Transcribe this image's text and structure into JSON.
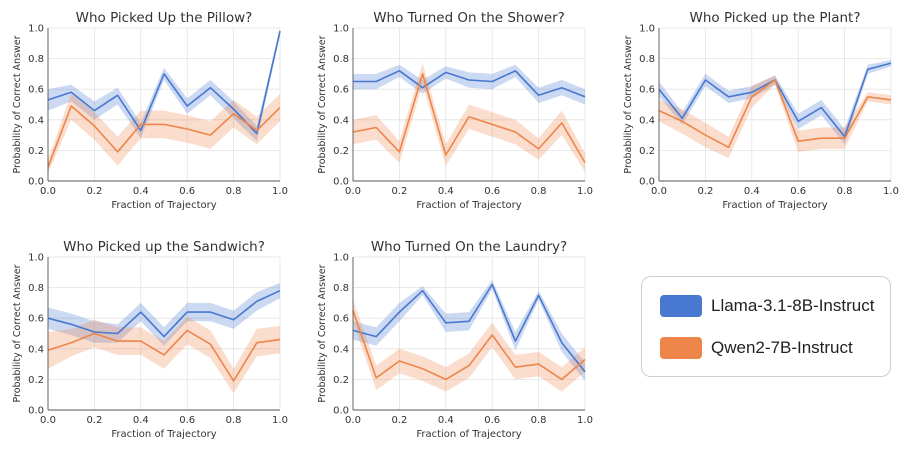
{
  "legend": {
    "items": [
      {
        "label": "Llama-3.1-8B-Instruct",
        "color": "#4878CF"
      },
      {
        "label": "Qwen2-7B-Instruct",
        "color": "#EE854A"
      }
    ]
  },
  "chart_data": [
    {
      "type": "line",
      "title": "Who Picked Up the Pillow?",
      "xlabel": "Fraction of Trajectory",
      "ylabel": "Probability of Correct Answer",
      "x": [
        0.0,
        0.1,
        0.2,
        0.3,
        0.4,
        0.5,
        0.6,
        0.7,
        0.8,
        0.9,
        1.0
      ],
      "xticks": [
        "0.0",
        "0.2",
        "0.4",
        "0.6",
        "0.8",
        "1.0"
      ],
      "yticks": [
        "0.0",
        "0.2",
        "0.4",
        "0.6",
        "0.8",
        "1.0"
      ],
      "xlim": [
        0,
        1
      ],
      "ylim": [
        0,
        1
      ],
      "grid": true,
      "series": [
        {
          "name": "Llama-3.1-8B-Instruct",
          "values": [
            0.53,
            0.58,
            0.46,
            0.56,
            0.33,
            0.7,
            0.49,
            0.61,
            0.47,
            0.31,
            0.98
          ],
          "lower": [
            0.46,
            0.52,
            0.4,
            0.5,
            0.28,
            0.66,
            0.44,
            0.56,
            0.41,
            0.26,
            0.95
          ],
          "upper": [
            0.6,
            0.63,
            0.52,
            0.61,
            0.38,
            0.74,
            0.54,
            0.66,
            0.52,
            0.36,
            1.0
          ]
        },
        {
          "name": "Qwen2-7B-Instruct",
          "values": [
            0.09,
            0.49,
            0.36,
            0.19,
            0.37,
            0.37,
            0.34,
            0.3,
            0.44,
            0.33,
            0.48
          ],
          "lower": [
            0.05,
            0.4,
            0.27,
            0.1,
            0.28,
            0.28,
            0.25,
            0.21,
            0.35,
            0.24,
            0.39
          ],
          "upper": [
            0.14,
            0.57,
            0.45,
            0.29,
            0.46,
            0.46,
            0.43,
            0.39,
            0.53,
            0.42,
            0.57
          ]
        }
      ]
    },
    {
      "type": "line",
      "title": "Who Turned On the Shower?",
      "xlabel": "Fraction of Trajectory",
      "ylabel": "Probability of Correct Answer",
      "x": [
        0.0,
        0.1,
        0.2,
        0.3,
        0.4,
        0.5,
        0.6,
        0.7,
        0.8,
        0.9,
        1.0
      ],
      "xticks": [
        "0.0",
        "0.2",
        "0.4",
        "0.6",
        "0.8",
        "1.0"
      ],
      "yticks": [
        "0.0",
        "0.2",
        "0.4",
        "0.6",
        "0.8",
        "1.0"
      ],
      "xlim": [
        0,
        1
      ],
      "ylim": [
        0,
        1
      ],
      "grid": true,
      "series": [
        {
          "name": "Llama-3.1-8B-Instruct",
          "values": [
            0.65,
            0.65,
            0.72,
            0.61,
            0.71,
            0.66,
            0.65,
            0.72,
            0.56,
            0.61,
            0.55
          ],
          "lower": [
            0.6,
            0.6,
            0.68,
            0.57,
            0.67,
            0.61,
            0.6,
            0.68,
            0.51,
            0.56,
            0.5
          ],
          "upper": [
            0.7,
            0.7,
            0.76,
            0.66,
            0.75,
            0.71,
            0.7,
            0.76,
            0.61,
            0.66,
            0.6
          ]
        },
        {
          "name": "Qwen2-7B-Instruct",
          "values": [
            0.32,
            0.35,
            0.19,
            0.7,
            0.17,
            0.42,
            0.37,
            0.32,
            0.21,
            0.38,
            0.12
          ],
          "lower": [
            0.24,
            0.27,
            0.12,
            0.63,
            0.1,
            0.34,
            0.29,
            0.24,
            0.14,
            0.3,
            0.06
          ],
          "upper": [
            0.4,
            0.43,
            0.26,
            0.77,
            0.24,
            0.5,
            0.45,
            0.4,
            0.28,
            0.46,
            0.18
          ]
        }
      ]
    },
    {
      "type": "line",
      "title": "Who Picked up the Plant?",
      "xlabel": "Fraction of Trajectory",
      "ylabel": "Probability of Correct Answer",
      "x": [
        0.0,
        0.1,
        0.2,
        0.3,
        0.4,
        0.5,
        0.6,
        0.7,
        0.8,
        0.9,
        1.0
      ],
      "xticks": [
        "0.0",
        "0.2",
        "0.4",
        "0.6",
        "0.8",
        "1.0"
      ],
      "yticks": [
        "0.0",
        "0.2",
        "0.4",
        "0.6",
        "0.8",
        "1.0"
      ],
      "xlim": [
        0,
        1
      ],
      "ylim": [
        0,
        1
      ],
      "grid": true,
      "series": [
        {
          "name": "Llama-3.1-8B-Instruct",
          "values": [
            0.6,
            0.41,
            0.66,
            0.55,
            0.58,
            0.66,
            0.39,
            0.48,
            0.29,
            0.73,
            0.77
          ],
          "lower": [
            0.55,
            0.37,
            0.62,
            0.51,
            0.54,
            0.63,
            0.34,
            0.43,
            0.24,
            0.7,
            0.75
          ],
          "upper": [
            0.65,
            0.45,
            0.7,
            0.59,
            0.62,
            0.69,
            0.44,
            0.53,
            0.34,
            0.76,
            0.79
          ]
        },
        {
          "name": "Qwen2-7B-Instruct",
          "values": [
            0.46,
            0.39,
            0.3,
            0.22,
            0.55,
            0.66,
            0.26,
            0.28,
            0.28,
            0.55,
            0.53
          ],
          "lower": [
            0.39,
            0.31,
            0.22,
            0.15,
            0.48,
            0.63,
            0.19,
            0.21,
            0.21,
            0.52,
            0.5
          ],
          "upper": [
            0.53,
            0.47,
            0.38,
            0.29,
            0.62,
            0.69,
            0.33,
            0.35,
            0.35,
            0.58,
            0.56
          ]
        }
      ]
    },
    {
      "type": "line",
      "title": "Who Picked up the Sandwich?",
      "xlabel": "Fraction of Trajectory",
      "ylabel": "Probability of Correct Answer",
      "x": [
        0.0,
        0.1,
        0.2,
        0.3,
        0.4,
        0.5,
        0.6,
        0.7,
        0.8,
        0.9,
        1.0
      ],
      "xticks": [
        "0.0",
        "0.2",
        "0.4",
        "0.6",
        "0.8",
        "1.0"
      ],
      "yticks": [
        "0.0",
        "0.2",
        "0.4",
        "0.6",
        "0.8",
        "1.0"
      ],
      "xlim": [
        0,
        1
      ],
      "ylim": [
        0,
        1
      ],
      "grid": true,
      "series": [
        {
          "name": "Llama-3.1-8B-Instruct",
          "values": [
            0.6,
            0.56,
            0.51,
            0.5,
            0.64,
            0.48,
            0.64,
            0.64,
            0.59,
            0.71,
            0.78
          ],
          "lower": [
            0.53,
            0.49,
            0.44,
            0.44,
            0.58,
            0.42,
            0.58,
            0.58,
            0.53,
            0.65,
            0.73
          ],
          "upper": [
            0.67,
            0.63,
            0.58,
            0.56,
            0.7,
            0.54,
            0.7,
            0.7,
            0.65,
            0.77,
            0.83
          ]
        },
        {
          "name": "Qwen2-7B-Instruct",
          "values": [
            0.39,
            0.44,
            0.5,
            0.45,
            0.45,
            0.36,
            0.52,
            0.43,
            0.19,
            0.44,
            0.46
          ],
          "lower": [
            0.27,
            0.35,
            0.41,
            0.36,
            0.36,
            0.27,
            0.43,
            0.34,
            0.11,
            0.35,
            0.37
          ],
          "upper": [
            0.51,
            0.53,
            0.59,
            0.54,
            0.54,
            0.45,
            0.61,
            0.52,
            0.27,
            0.53,
            0.55
          ]
        }
      ]
    },
    {
      "type": "line",
      "title": "Who Turned On the Laundry?",
      "xlabel": "Fraction of Trajectory",
      "ylabel": "Probability of Correct Answer",
      "x": [
        0.0,
        0.1,
        0.2,
        0.3,
        0.4,
        0.5,
        0.6,
        0.7,
        0.8,
        0.9,
        1.0
      ],
      "xticks": [
        "0.0",
        "0.2",
        "0.4",
        "0.6",
        "0.8",
        "1.0"
      ],
      "yticks": [
        "0.0",
        "0.2",
        "0.4",
        "0.6",
        "0.8",
        "1.0"
      ],
      "xlim": [
        0,
        1
      ],
      "ylim": [
        0,
        1
      ],
      "grid": true,
      "series": [
        {
          "name": "Llama-3.1-8B-Instruct",
          "values": [
            0.52,
            0.48,
            0.64,
            0.78,
            0.57,
            0.58,
            0.82,
            0.45,
            0.75,
            0.44,
            0.25
          ],
          "lower": [
            0.46,
            0.42,
            0.58,
            0.75,
            0.51,
            0.52,
            0.79,
            0.39,
            0.72,
            0.38,
            0.19
          ],
          "upper": [
            0.58,
            0.54,
            0.7,
            0.81,
            0.63,
            0.64,
            0.85,
            0.51,
            0.78,
            0.5,
            0.31
          ]
        },
        {
          "name": "Qwen2-7B-Instruct",
          "values": [
            0.65,
            0.21,
            0.32,
            0.27,
            0.2,
            0.29,
            0.49,
            0.28,
            0.3,
            0.2,
            0.33
          ],
          "lower": [
            0.58,
            0.13,
            0.24,
            0.19,
            0.12,
            0.21,
            0.41,
            0.2,
            0.22,
            0.12,
            0.25
          ],
          "upper": [
            0.72,
            0.29,
            0.4,
            0.35,
            0.28,
            0.37,
            0.57,
            0.36,
            0.38,
            0.28,
            0.41
          ]
        }
      ]
    }
  ]
}
